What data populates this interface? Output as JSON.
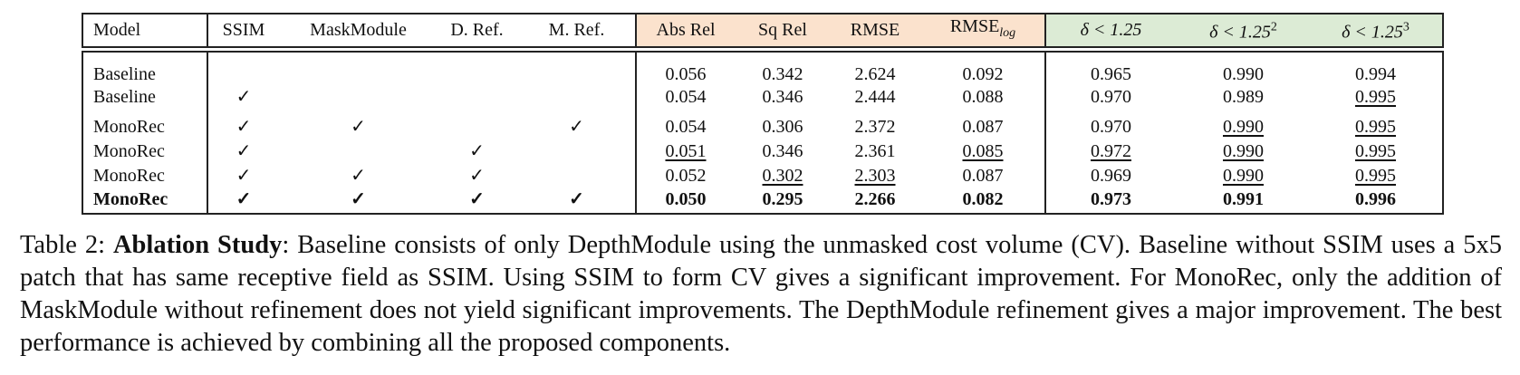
{
  "table": {
    "headers": [
      "Model",
      "SSIM",
      "MaskModule",
      "D. Ref.",
      "M. Ref.",
      "Abs Rel",
      "Sq Rel",
      "RMSE",
      {
        "text": "RMSE",
        "sub": "log"
      },
      {
        "text": "δ < 1.25"
      },
      {
        "text": "δ < 1.25",
        "sup": "2"
      },
      {
        "text": "δ < 1.25",
        "sup": "3"
      }
    ],
    "header_colors": [
      null,
      null,
      null,
      null,
      null,
      "#fbe2cd",
      "#fbe2cd",
      "#fbe2cd",
      "#fbe2cd",
      "#dcebd5",
      "#dcebd5",
      "#dcebd5"
    ],
    "rows": [
      {
        "cells": [
          "Baseline",
          null,
          null,
          null,
          null,
          "0.056",
          "0.342",
          "2.624",
          "0.092",
          "0.965",
          "0.990",
          "0.994"
        ],
        "underline": [],
        "bold": false
      },
      {
        "cells": [
          "Baseline",
          "✓",
          null,
          null,
          null,
          "0.054",
          "0.346",
          "2.444",
          "0.088",
          "0.970",
          "0.989",
          "0.995"
        ],
        "underline": [
          11
        ],
        "bold": false
      },
      {
        "cells": [
          "MonoRec",
          "✓",
          "✓",
          null,
          "✓",
          "0.054",
          "0.306",
          "2.372",
          "0.087",
          "0.970",
          "0.990",
          "0.995"
        ],
        "underline": [
          10,
          11
        ],
        "bold": false
      },
      {
        "cells": [
          "MonoRec",
          "✓",
          null,
          "✓",
          null,
          "0.051",
          "0.346",
          "2.361",
          "0.085",
          "0.972",
          "0.990",
          "0.995"
        ],
        "underline": [
          5,
          8,
          9,
          10,
          11
        ],
        "bold": false
      },
      {
        "cells": [
          "MonoRec",
          "✓",
          "✓",
          "✓",
          null,
          "0.052",
          "0.302",
          "2.303",
          "0.087",
          "0.969",
          "0.990",
          "0.995"
        ],
        "underline": [
          6,
          7,
          10,
          11
        ],
        "bold": false
      },
      {
        "cells": [
          "MonoRec",
          "✓",
          "✓",
          "✓",
          "✓",
          "0.050",
          "0.295",
          "2.266",
          "0.082",
          "0.973",
          "0.991",
          "0.996"
        ],
        "underline": [],
        "bold": true
      }
    ]
  },
  "caption": {
    "label": "Table 2:",
    "title": "Ablation Study",
    "text": ": Baseline consists of only DepthModule using the unmasked cost volume (CV). Baseline without SSIM uses a 5x5 patch that has same receptive field as SSIM. Using SSIM to form CV gives a significant improvement. For MonoRec, only the addition of MaskModule without refinement does not yield significant improvements. The DepthModule refinement gives a major improvement. The best performance is achieved by combining all the proposed components."
  }
}
